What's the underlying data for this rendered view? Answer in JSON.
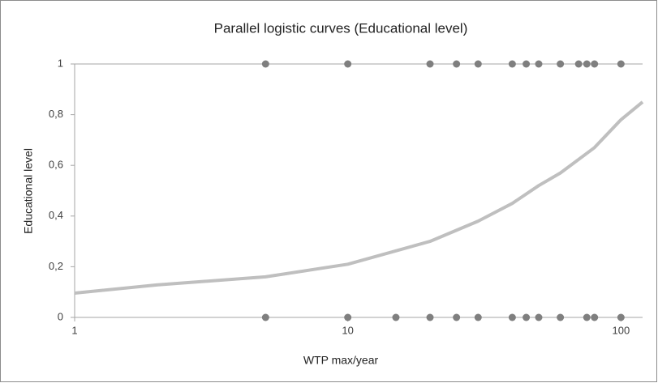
{
  "chart_data": {
    "type": "scatter",
    "title": "Parallel logistic curves (Educational level)",
    "x_label": "WTP max/year",
    "y_label": "Educational level",
    "xlog": true,
    "xlim": [
      1,
      120
    ],
    "ylim": [
      0,
      1
    ],
    "xticks": [
      1,
      10,
      100
    ],
    "yticks": [
      0,
      {
        "value": 0.2,
        "label": "0,2"
      },
      {
        "value": 0.4,
        "label": "0,4"
      },
      {
        "value": 0.6,
        "label": "0,6"
      },
      {
        "value": 0.8,
        "label": "0,8"
      },
      1
    ],
    "series": [
      {
        "type": "scatter",
        "color": "#7f7f7f",
        "x": [
          5,
          10,
          20,
          25,
          30,
          40,
          45,
          50,
          60,
          70,
          75,
          80,
          100,
          5,
          10,
          15,
          20,
          25,
          30,
          40,
          45,
          50,
          60,
          75,
          80,
          100
        ],
        "values": [
          1,
          1,
          1,
          1,
          1,
          1,
          1,
          1,
          1,
          1,
          1,
          1,
          1,
          0,
          0,
          0,
          0,
          0,
          0,
          0,
          0,
          0,
          0,
          0,
          0,
          0
        ]
      },
      {
        "type": "line",
        "color": "#bfbfbf",
        "x": [
          1,
          2,
          5,
          10,
          20,
          30,
          40,
          50,
          60,
          80,
          100,
          120
        ],
        "values": [
          0.096,
          0.128,
          0.16,
          0.21,
          0.3,
          0.38,
          0.45,
          0.52,
          0.57,
          0.67,
          0.78,
          0.85
        ]
      }
    ]
  }
}
